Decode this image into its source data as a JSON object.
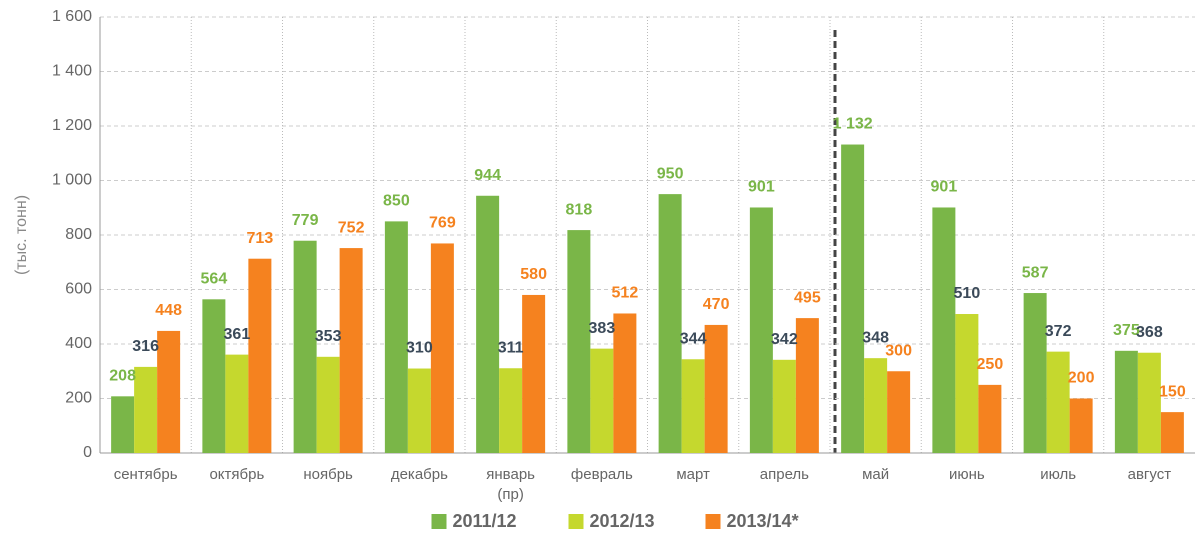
{
  "chart_data": {
    "type": "bar",
    "y_label": "(тыс. тонн)",
    "categories": [
      "сентябрь",
      "октябрь",
      "ноябрь",
      "декабрь",
      "январь\n(пр)",
      "февраль",
      "март",
      "апрель",
      "май",
      "июнь",
      "июль",
      "август"
    ],
    "series": [
      {
        "name": "2011/12",
        "color": "#7ab648",
        "label_color": "#7ab648",
        "values": [
          208,
          564,
          779,
          850,
          944,
          818,
          950,
          901,
          1132,
          901,
          587,
          375
        ],
        "value_labels": [
          "208",
          "564",
          "779",
          "850",
          "944",
          "818",
          "950",
          "901",
          "1 132",
          "901",
          "587",
          "375"
        ]
      },
      {
        "name": "2012/13",
        "color": "#c5d82e",
        "label_color": "#3b4a59",
        "values": [
          316,
          361,
          353,
          310,
          311,
          383,
          344,
          342,
          348,
          510,
          372,
          368
        ]
      },
      {
        "name": "2013/14*",
        "color": "#f5821f",
        "label_color": "#f5821f",
        "values": [
          448,
          713,
          752,
          769,
          580,
          512,
          470,
          495,
          300,
          250,
          200,
          150
        ]
      }
    ],
    "ylim": [
      0,
      1600
    ],
    "yticks": [
      0,
      200,
      400,
      600,
      800,
      {
        "value": 1000,
        "label": "1 000"
      },
      {
        "value": 1200,
        "label": "1 200"
      },
      {
        "value": 1400,
        "label": "1 400"
      },
      {
        "value": 1600,
        "label": "1 600"
      }
    ],
    "grid": true
  }
}
